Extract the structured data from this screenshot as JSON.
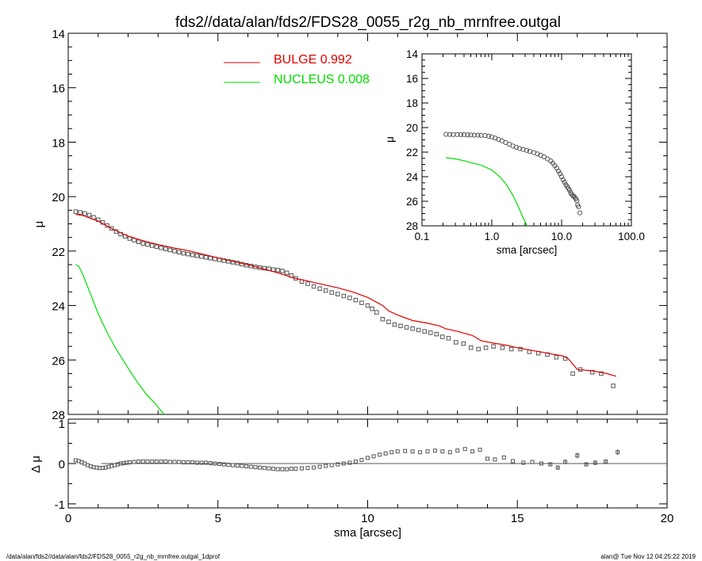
{
  "title": "fds2//data/alan/fds2/FDS28_0055_r2g_nb_mrnfree.outgal",
  "footer_left": "/data/alan/fds2//data/alan/fds2/FDS28_0055_r2g_nb_mrnfree.outgal_1dprof",
  "footer_right": "alan@  Tue Nov 12 04:25:22 2019",
  "colors": {
    "bulge": "#e00000",
    "nucleus": "#00dd00",
    "data": "#555555",
    "axis": "#000000"
  },
  "chart_data": [
    {
      "type": "scatter",
      "id": "main",
      "title": "fds2//data/alan/fds2/FDS28_0055_r2g_nb_mrnfree.outgal",
      "xlabel": "",
      "ylabel": "μ",
      "xlim": [
        0,
        20
      ],
      "ylim": [
        28,
        14
      ],
      "y_inverted": true,
      "xticks": [
        0,
        5,
        10,
        15,
        20
      ],
      "yticks": [
        14,
        16,
        18,
        20,
        22,
        24,
        26,
        28
      ],
      "ytick_labels": [
        "14",
        "16",
        "18",
        "20",
        "22",
        "24",
        "26",
        "28"
      ],
      "legend": [
        {
          "label": "BULGE  0.992",
          "color": "#e00000"
        },
        {
          "label": "NUCLEUS  0.008",
          "color": "#00dd00"
        }
      ],
      "series": [
        {
          "name": "data",
          "kind": "points",
          "x": [
            0.25,
            0.4,
            0.55,
            0.7,
            0.85,
            1.0,
            1.15,
            1.3,
            1.45,
            1.6,
            1.75,
            1.9,
            2.05,
            2.2,
            2.35,
            2.5,
            2.65,
            2.8,
            2.95,
            3.1,
            3.25,
            3.4,
            3.55,
            3.7,
            3.85,
            4.0,
            4.15,
            4.3,
            4.45,
            4.6,
            4.75,
            4.9,
            5.05,
            5.2,
            5.35,
            5.5,
            5.65,
            5.8,
            5.95,
            6.1,
            6.25,
            6.4,
            6.55,
            6.7,
            6.85,
            7.0,
            7.15,
            7.3,
            7.45,
            7.6,
            7.8,
            8.0,
            8.2,
            8.4,
            8.6,
            8.8,
            9.0,
            9.2,
            9.4,
            9.6,
            9.8,
            10.0,
            10.15,
            10.3,
            10.5,
            10.7,
            10.9,
            11.1,
            11.3,
            11.5,
            11.7,
            11.9,
            12.1,
            12.3,
            12.5,
            12.7,
            12.95,
            13.2,
            13.45,
            13.7,
            13.95,
            14.2,
            14.5,
            14.8,
            15.1,
            15.4,
            15.7,
            16.0,
            16.3,
            16.6,
            16.85,
            17.1,
            17.5,
            17.8,
            18.2
          ],
          "y": [
            20.55,
            20.58,
            20.62,
            20.68,
            20.76,
            20.85,
            20.95,
            21.06,
            21.17,
            21.28,
            21.38,
            21.46,
            21.54,
            21.6,
            21.66,
            21.72,
            21.76,
            21.8,
            21.84,
            21.88,
            21.92,
            21.96,
            22.0,
            22.04,
            22.08,
            22.11,
            22.14,
            22.17,
            22.2,
            22.23,
            22.26,
            22.29,
            22.32,
            22.35,
            22.38,
            22.41,
            22.44,
            22.48,
            22.52,
            22.55,
            22.58,
            22.61,
            22.63,
            22.65,
            22.68,
            22.7,
            22.73,
            22.8,
            22.9,
            23.0,
            23.12,
            23.2,
            23.3,
            23.38,
            23.45,
            23.52,
            23.58,
            23.65,
            23.72,
            23.8,
            23.9,
            24.0,
            24.12,
            24.25,
            24.5,
            24.6,
            24.7,
            24.75,
            24.8,
            24.85,
            24.9,
            24.95,
            25.0,
            25.05,
            25.15,
            25.2,
            25.35,
            25.4,
            25.55,
            25.6,
            25.55,
            25.5,
            25.55,
            25.6,
            25.6,
            25.7,
            25.75,
            25.8,
            25.9,
            25.95,
            26.5,
            26.35,
            26.45,
            26.5,
            26.95
          ]
        },
        {
          "name": "bulge",
          "kind": "line",
          "color": "#e00000",
          "x": [
            0.25,
            0.5,
            1.0,
            1.5,
            2.0,
            2.5,
            3.0,
            3.5,
            4.0,
            5.0,
            6.0,
            7.0,
            7.5,
            8.0,
            9.0,
            9.5,
            10.0,
            10.5,
            10.7,
            11.0,
            11.5,
            12.0,
            12.4,
            12.6,
            13.0,
            13.5,
            13.8,
            14.2,
            14.6,
            15.0,
            15.5,
            16.0,
            16.5,
            16.7,
            17.0,
            17.5,
            18.0,
            18.3
          ],
          "y": [
            20.65,
            20.7,
            20.9,
            21.2,
            21.45,
            21.62,
            21.76,
            21.88,
            21.98,
            22.25,
            22.5,
            22.8,
            22.98,
            23.1,
            23.35,
            23.5,
            23.7,
            24.0,
            24.2,
            24.35,
            24.55,
            24.65,
            24.75,
            24.85,
            24.95,
            25.1,
            25.3,
            25.38,
            25.45,
            25.55,
            25.65,
            25.75,
            25.85,
            25.95,
            26.35,
            26.4,
            26.5,
            26.6
          ]
        },
        {
          "name": "nucleus",
          "kind": "line",
          "color": "#00dd00",
          "x": [
            0.25,
            0.35,
            0.5,
            0.7,
            1.0,
            1.3,
            1.6,
            2.0,
            2.3,
            2.6,
            2.9,
            3.2
          ],
          "y": [
            22.5,
            22.55,
            22.9,
            23.45,
            24.3,
            25.0,
            25.6,
            26.3,
            26.8,
            27.25,
            27.6,
            28.0
          ]
        }
      ]
    },
    {
      "type": "scatter",
      "id": "residual",
      "xlabel": "sma [arcsec]",
      "ylabel": "Δ μ",
      "xlim": [
        0,
        20
      ],
      "ylim": [
        -1.1,
        1.1
      ],
      "xticks": [
        0,
        5,
        10,
        15,
        20
      ],
      "xtick_labels": [
        "0",
        "5",
        "10",
        "15",
        "20"
      ],
      "yticks": [
        -1,
        0,
        1
      ],
      "ytick_labels": [
        "-1",
        "0",
        "1"
      ],
      "zero_line": {
        "x": [
          1.1,
          20
        ],
        "y": 0
      },
      "series": [
        {
          "name": "residual",
          "kind": "points",
          "x": [
            0.25,
            0.35,
            0.45,
            0.55,
            0.65,
            0.75,
            0.85,
            0.95,
            1.05,
            1.15,
            1.25,
            1.35,
            1.45,
            1.55,
            1.65,
            1.75,
            1.85,
            1.95,
            2.05,
            2.2,
            2.35,
            2.5,
            2.65,
            2.8,
            2.95,
            3.1,
            3.25,
            3.4,
            3.55,
            3.7,
            3.85,
            4.0,
            4.15,
            4.3,
            4.45,
            4.6,
            4.75,
            4.9,
            5.05,
            5.2,
            5.35,
            5.5,
            5.65,
            5.8,
            5.95,
            6.1,
            6.25,
            6.4,
            6.55,
            6.7,
            6.85,
            7.0,
            7.15,
            7.3,
            7.45,
            7.6,
            7.8,
            8.0,
            8.2,
            8.4,
            8.6,
            8.8,
            9.0,
            9.2,
            9.4,
            9.6,
            9.8,
            10.0,
            10.2,
            10.4,
            10.6,
            10.8,
            11.0,
            11.25,
            11.5,
            11.75,
            12.0,
            12.25,
            12.5,
            12.75,
            13.0,
            13.25,
            13.5,
            13.75,
            14.0,
            14.25,
            14.55,
            14.85,
            15.2,
            15.5,
            15.8,
            16.1,
            16.35,
            16.6,
            17.0,
            17.3,
            17.6,
            17.95,
            18.35
          ],
          "y": [
            0.08,
            0.06,
            0.03,
            0.0,
            -0.04,
            -0.07,
            -0.09,
            -0.1,
            -0.11,
            -0.11,
            -0.1,
            -0.08,
            -0.06,
            -0.04,
            -0.02,
            0.0,
            0.01,
            0.02,
            0.03,
            0.04,
            0.05,
            0.05,
            0.05,
            0.05,
            0.05,
            0.05,
            0.05,
            0.04,
            0.04,
            0.04,
            0.03,
            0.03,
            0.03,
            0.02,
            0.02,
            0.02,
            0.01,
            0.0,
            -0.01,
            -0.02,
            -0.03,
            -0.04,
            -0.05,
            -0.06,
            -0.07,
            -0.08,
            -0.09,
            -0.1,
            -0.11,
            -0.12,
            -0.13,
            -0.14,
            -0.14,
            -0.14,
            -0.13,
            -0.13,
            -0.12,
            -0.11,
            -0.1,
            -0.08,
            -0.06,
            -0.04,
            -0.02,
            0.0,
            0.02,
            0.05,
            0.09,
            0.14,
            0.18,
            0.22,
            0.25,
            0.28,
            0.3,
            0.31,
            0.3,
            0.28,
            0.3,
            0.32,
            0.3,
            0.28,
            0.32,
            0.36,
            0.3,
            0.34,
            0.12,
            0.1,
            0.15,
            0.06,
            0.02,
            0.04,
            0.0,
            -0.02,
            -0.1,
            0.04,
            0.2,
            -0.02,
            0.02,
            0.05,
            0.28
          ],
          "err": [
            0,
            0,
            0,
            0,
            0,
            0,
            0,
            0,
            0,
            0,
            0,
            0,
            0,
            0,
            0,
            0,
            0,
            0,
            0,
            0,
            0,
            0,
            0,
            0,
            0,
            0,
            0,
            0,
            0,
            0,
            0,
            0,
            0,
            0,
            0,
            0,
            0,
            0,
            0,
            0,
            0,
            0,
            0,
            0,
            0,
            0,
            0,
            0,
            0,
            0,
            0,
            0,
            0,
            0,
            0,
            0,
            0,
            0,
            0,
            0,
            0,
            0,
            0,
            0,
            0,
            0,
            0,
            0,
            0,
            0,
            0,
            0,
            0,
            0,
            0,
            0,
            0,
            0,
            0,
            0,
            0,
            0,
            0,
            0,
            0,
            0,
            0,
            0,
            0,
            0,
            0,
            0.04,
            0.05,
            0.06,
            0.07,
            0.05,
            0.06,
            0.05,
            0.07
          ]
        }
      ]
    },
    {
      "type": "scatter",
      "id": "inset",
      "xscale": "log",
      "xlabel": "sma [arcsec]",
      "ylabel": "μ",
      "xlim": [
        0.1,
        100
      ],
      "ylim": [
        28,
        14
      ],
      "y_inverted": true,
      "xticks": [
        0.1,
        1,
        10,
        100
      ],
      "xtick_labels": [
        "0.1",
        "1.0",
        "10.0",
        "100.0"
      ],
      "yticks": [
        14,
        16,
        18,
        20,
        22,
        24,
        26,
        28
      ],
      "ytick_labels": [
        "14",
        "16",
        "18",
        "20",
        "22",
        "24",
        "26",
        "28"
      ],
      "series": [
        {
          "name": "data",
          "kind": "points",
          "x": [
            0.22,
            0.25,
            0.28,
            0.32,
            0.36,
            0.4,
            0.45,
            0.5,
            0.56,
            0.63,
            0.7,
            0.8,
            0.9,
            1.0,
            1.12,
            1.25,
            1.4,
            1.58,
            1.78,
            2.0,
            2.24,
            2.5,
            2.8,
            3.16,
            3.5,
            4.0,
            4.5,
            5.0,
            5.6,
            6.3,
            7.0,
            7.5,
            8.0,
            8.5,
            9.0,
            9.5,
            10.0,
            10.5,
            11.0,
            11.5,
            12.0,
            12.5,
            13.0,
            13.5,
            14.0,
            14.5,
            15.0,
            15.5,
            16.0,
            16.5,
            17.0,
            17.5,
            18.3
          ],
          "y": [
            20.55,
            20.56,
            20.57,
            20.57,
            20.58,
            20.58,
            20.59,
            20.6,
            20.61,
            20.62,
            20.63,
            20.65,
            20.7,
            20.76,
            20.85,
            20.96,
            21.08,
            21.22,
            21.36,
            21.5,
            21.6,
            21.7,
            21.78,
            21.86,
            21.94,
            22.04,
            22.14,
            22.25,
            22.38,
            22.55,
            22.72,
            22.9,
            23.1,
            23.3,
            23.55,
            23.75,
            24.0,
            24.25,
            24.45,
            24.65,
            24.8,
            24.95,
            25.1,
            25.3,
            25.45,
            25.55,
            25.6,
            25.7,
            25.8,
            25.95,
            26.3,
            26.45,
            26.95
          ]
        },
        {
          "name": "nucleus",
          "kind": "line",
          "color": "#00dd00",
          "x": [
            0.22,
            0.3,
            0.4,
            0.5,
            0.7,
            1.0,
            1.3,
            1.6,
            2.0,
            2.3,
            2.6,
            2.9,
            3.2
          ],
          "y": [
            22.45,
            22.55,
            22.7,
            22.85,
            23.05,
            23.45,
            24.0,
            24.6,
            25.5,
            26.2,
            26.9,
            27.5,
            28.0
          ]
        }
      ]
    }
  ]
}
